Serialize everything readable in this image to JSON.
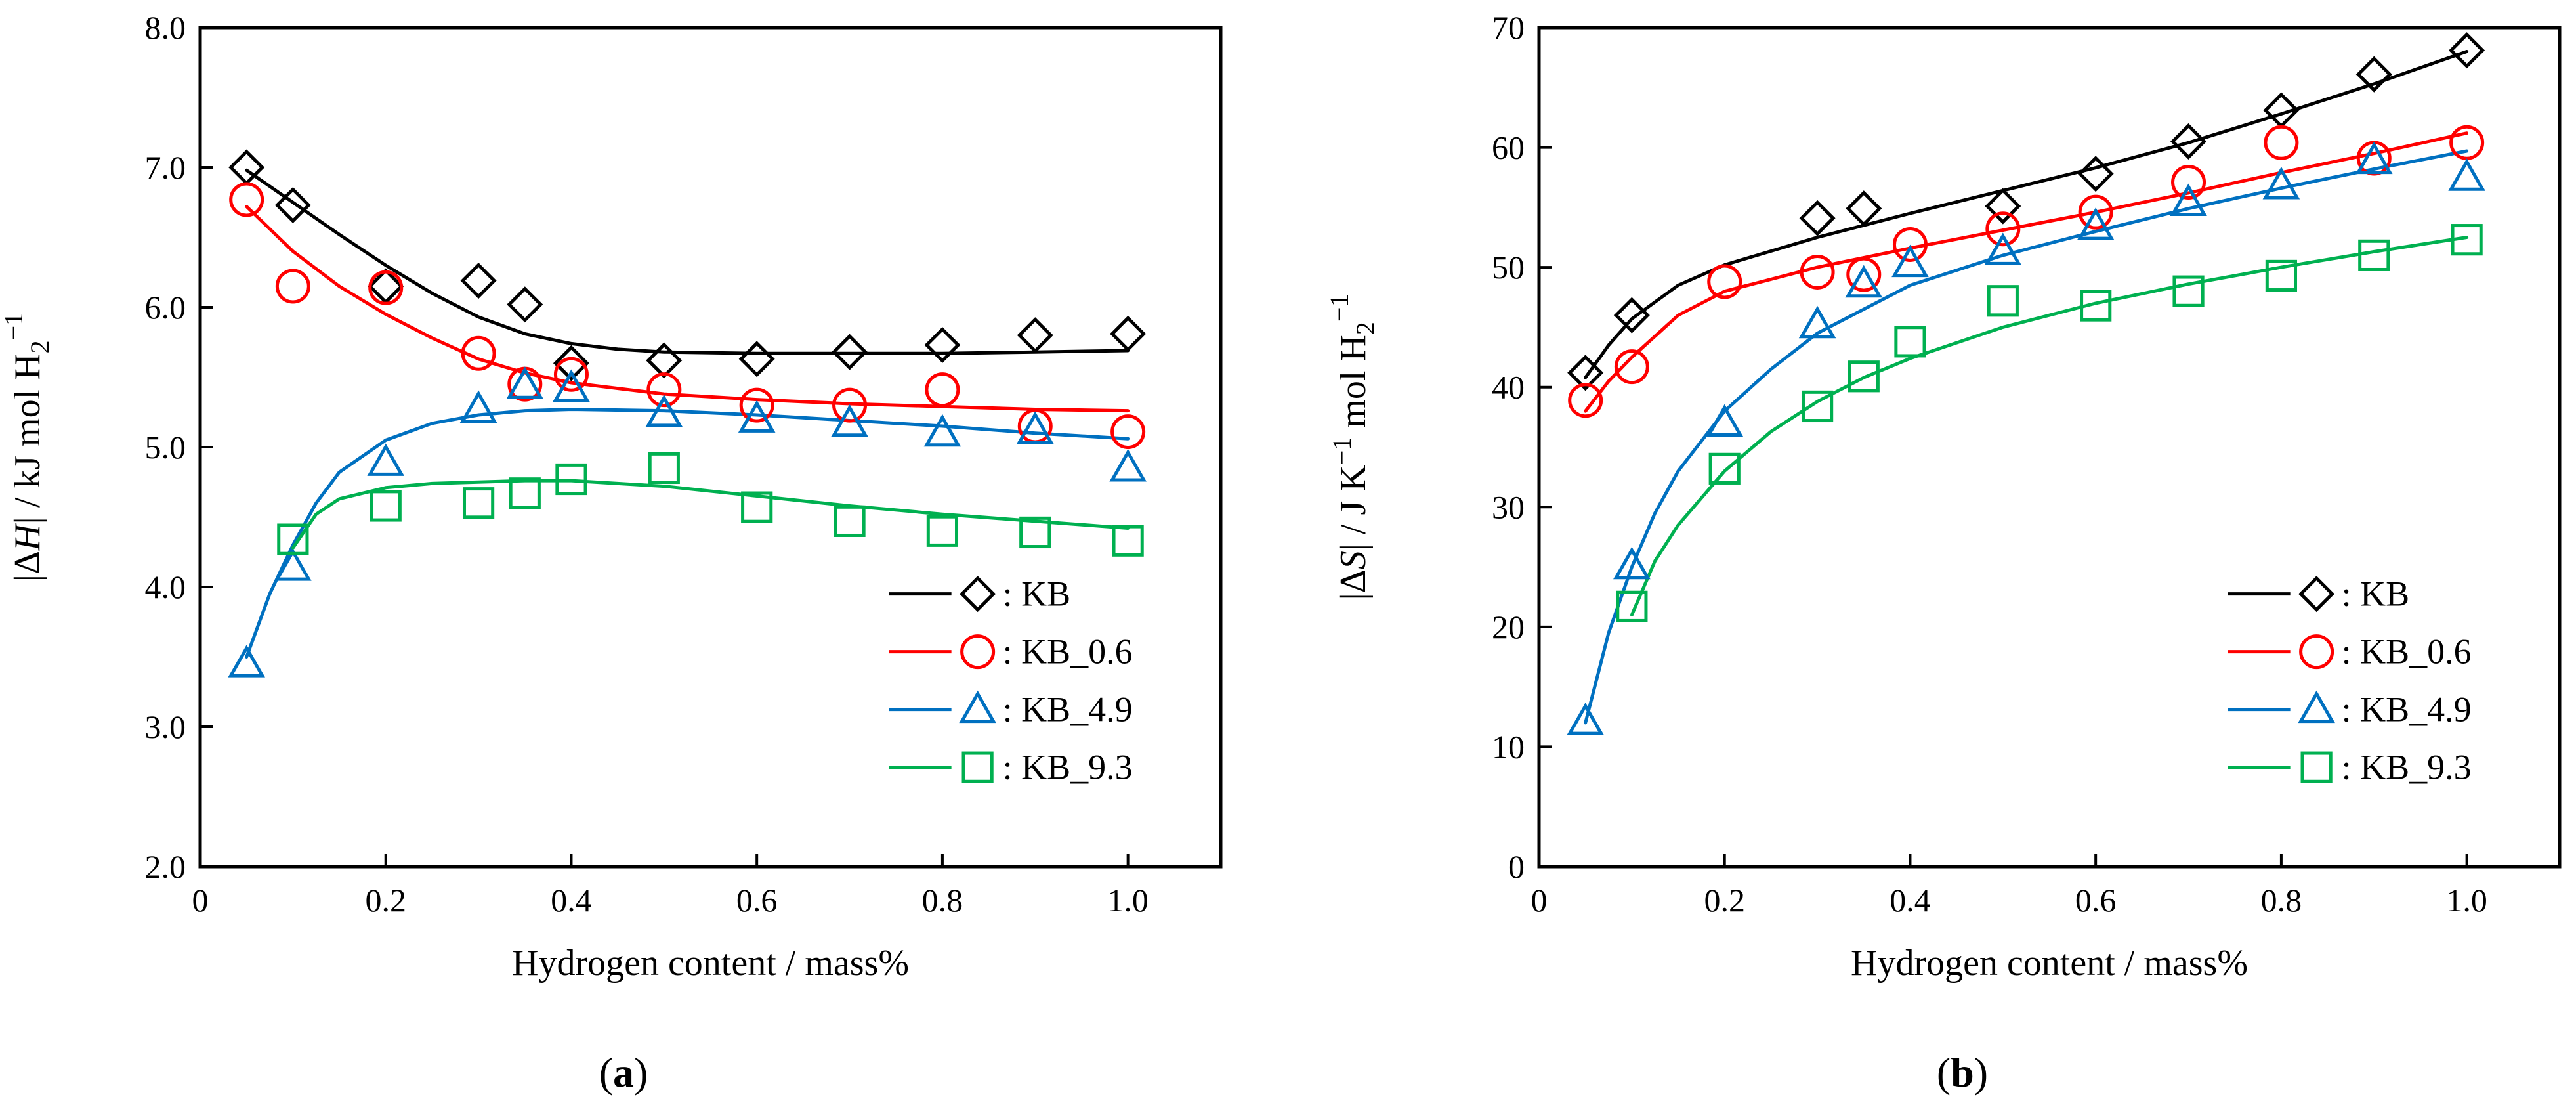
{
  "chart_data": [
    {
      "panel_label": "a",
      "type": "scatter",
      "xlabel": "Hydrogen content / mass%",
      "ylabel": {
        "pre": "|Δ",
        "italic": "H",
        "post": "| / kJ mol H",
        "sub": "2",
        "sup": "−1"
      },
      "xlim": [
        0,
        1.1
      ],
      "ylim": [
        2.0,
        8.0
      ],
      "xticks": [
        0,
        0.2,
        0.4,
        0.6,
        0.8,
        1.0
      ],
      "xtick_labels": [
        "0",
        "0.2",
        "0.4",
        "0.6",
        "0.8",
        "1.0"
      ],
      "yticks": [
        2,
        3,
        4,
        5,
        6,
        7,
        8
      ],
      "ytick_labels": [
        "2.0",
        "3.0",
        "4.0",
        "5.0",
        "6.0",
        "7.0",
        "8.0"
      ],
      "grid": false,
      "legend_placement": "bottom-right",
      "series": [
        {
          "name": ": KB",
          "color": "#000000",
          "marker": "diamond",
          "x": [
            0.05,
            0.1,
            0.2,
            0.3,
            0.35,
            0.4,
            0.5,
            0.6,
            0.7,
            0.8,
            0.9,
            1.0
          ],
          "y": [
            7.0,
            6.73,
            6.15,
            6.19,
            6.02,
            5.6,
            5.62,
            5.63,
            5.68,
            5.73,
            5.8,
            5.81
          ],
          "fit_x": [
            0.05,
            0.1,
            0.15,
            0.2,
            0.25,
            0.3,
            0.35,
            0.4,
            0.45,
            0.5,
            0.6,
            0.7,
            0.8,
            0.9,
            1.0
          ],
          "fit_y": [
            6.98,
            6.75,
            6.52,
            6.3,
            6.1,
            5.93,
            5.81,
            5.74,
            5.7,
            5.68,
            5.67,
            5.67,
            5.67,
            5.68,
            5.69
          ]
        },
        {
          "name": ": KB_0.6",
          "color": "#ff0000",
          "marker": "circle",
          "x": [
            0.05,
            0.1,
            0.2,
            0.3,
            0.35,
            0.4,
            0.5,
            0.6,
            0.7,
            0.8,
            0.9,
            1.0
          ],
          "y": [
            6.77,
            6.15,
            6.14,
            5.67,
            5.45,
            5.52,
            5.41,
            5.3,
            5.3,
            5.41,
            5.15,
            5.11
          ],
          "fit_x": [
            0.05,
            0.1,
            0.15,
            0.2,
            0.25,
            0.3,
            0.35,
            0.4,
            0.5,
            0.6,
            0.7,
            0.8,
            0.9,
            1.0
          ],
          "fit_y": [
            6.72,
            6.4,
            6.15,
            5.95,
            5.78,
            5.63,
            5.53,
            5.46,
            5.38,
            5.34,
            5.31,
            5.29,
            5.27,
            5.26
          ]
        },
        {
          "name": ": KB_4.9",
          "color": "#0070c0",
          "marker": "triangle",
          "x": [
            0.05,
            0.1,
            0.2,
            0.3,
            0.35,
            0.4,
            0.5,
            0.6,
            0.7,
            0.8,
            0.9,
            1.0
          ],
          "y": [
            3.45,
            4.14,
            4.89,
            5.27,
            5.44,
            5.42,
            5.24,
            5.2,
            5.17,
            5.1,
            5.12,
            4.85
          ],
          "fit_x": [
            0.05,
            0.075,
            0.1,
            0.125,
            0.15,
            0.2,
            0.25,
            0.3,
            0.35,
            0.4,
            0.5,
            0.6,
            0.7,
            0.8,
            0.9,
            1.0
          ],
          "fit_y": [
            3.5,
            3.95,
            4.3,
            4.6,
            4.82,
            5.05,
            5.17,
            5.23,
            5.26,
            5.27,
            5.26,
            5.23,
            5.19,
            5.15,
            5.1,
            5.06
          ]
        },
        {
          "name": ": KB_9.3",
          "color": "#00b050",
          "marker": "square",
          "x": [
            0.1,
            0.2,
            0.3,
            0.35,
            0.4,
            0.5,
            0.6,
            0.7,
            0.8,
            0.9,
            1.0
          ],
          "y": [
            4.34,
            4.58,
            4.6,
            4.67,
            4.77,
            4.85,
            4.57,
            4.47,
            4.4,
            4.39,
            4.33
          ],
          "fit_x": [
            0.1,
            0.125,
            0.15,
            0.2,
            0.25,
            0.3,
            0.35,
            0.4,
            0.5,
            0.6,
            0.7,
            0.8,
            0.9,
            1.0
          ],
          "fit_y": [
            4.28,
            4.52,
            4.63,
            4.71,
            4.74,
            4.75,
            4.76,
            4.76,
            4.72,
            4.65,
            4.58,
            4.52,
            4.47,
            4.42
          ]
        }
      ]
    },
    {
      "panel_label": "b",
      "type": "scatter",
      "xlabel": "Hydrogen content / mass%",
      "ylabel": {
        "pre": "|Δ",
        "italic": "S",
        "post": "| / J K",
        "sup1": "−1",
        "post2": " mol H",
        "sub": "2",
        "sup": "−1"
      },
      "xlim": [
        0,
        1.1
      ],
      "ylim": [
        0,
        70
      ],
      "xticks": [
        0,
        0.2,
        0.4,
        0.6,
        0.8,
        1.0
      ],
      "xtick_labels": [
        "0",
        "0.2",
        "0.4",
        "0.6",
        "0.8",
        "1.0"
      ],
      "yticks": [
        0,
        10,
        20,
        30,
        40,
        50,
        60,
        70
      ],
      "ytick_labels": [
        "0",
        "10",
        "20",
        "30",
        "40",
        "50",
        "60",
        "70"
      ],
      "grid": false,
      "legend_placement": "bottom-right",
      "series": [
        {
          "name": ": KB",
          "color": "#000000",
          "marker": "diamond",
          "x": [
            0.05,
            0.1,
            0.3,
            0.35,
            0.5,
            0.6,
            0.7,
            0.8,
            0.9,
            1.0
          ],
          "y": [
            41.2,
            46,
            54.1,
            54.9,
            55.1,
            57.8,
            60.5,
            63.1,
            66.1,
            68.1
          ],
          "fit_x": [
            0.05,
            0.075,
            0.1,
            0.15,
            0.2,
            0.3,
            0.4,
            0.5,
            0.6,
            0.7,
            0.8,
            0.9,
            1.0
          ],
          "fit_y": [
            40.8,
            43.5,
            45.7,
            48.5,
            50.2,
            52.5,
            54.5,
            56.4,
            58.3,
            60.4,
            62.8,
            65.3,
            68.0
          ]
        },
        {
          "name": ": KB_0.6",
          "color": "#ff0000",
          "marker": "circle",
          "x": [
            0.05,
            0.1,
            0.2,
            0.3,
            0.35,
            0.4,
            0.5,
            0.6,
            0.7,
            0.8,
            0.9,
            1.0
          ],
          "y": [
            38.9,
            41.7,
            48.8,
            49.6,
            49.4,
            51.9,
            53.2,
            54.6,
            57.1,
            60.4,
            59.1,
            60.4
          ],
          "fit_x": [
            0.05,
            0.075,
            0.1,
            0.15,
            0.2,
            0.3,
            0.4,
            0.5,
            0.6,
            0.7,
            0.8,
            0.9,
            1.0
          ],
          "fit_y": [
            38.0,
            40.5,
            42.5,
            46.0,
            48.0,
            50.0,
            51.6,
            53.1,
            54.6,
            56.2,
            57.9,
            59.5,
            61.2
          ]
        },
        {
          "name": ": KB_4.9",
          "color": "#0070c0",
          "marker": "triangle",
          "x": [
            0.05,
            0.1,
            0.2,
            0.3,
            0.35,
            0.4,
            0.5,
            0.6,
            0.7,
            0.8,
            0.9,
            1.0
          ],
          "y": [
            12.1,
            25.1,
            37,
            45.2,
            48.6,
            50.3,
            51.3,
            53.4,
            55.4,
            56.8,
            58.9,
            57.5
          ],
          "fit_x": [
            0.05,
            0.075,
            0.1,
            0.125,
            0.15,
            0.2,
            0.25,
            0.3,
            0.4,
            0.5,
            0.6,
            0.7,
            0.8,
            0.9,
            1.0
          ],
          "fit_y": [
            12.0,
            19.5,
            25.0,
            29.5,
            33.0,
            38.0,
            41.5,
            44.5,
            48.5,
            51.0,
            53.0,
            54.9,
            56.6,
            58.2,
            59.7
          ]
        },
        {
          "name": ": KB_9.3",
          "color": "#00b050",
          "marker": "square",
          "x": [
            0.1,
            0.2,
            0.3,
            0.35,
            0.4,
            0.5,
            0.6,
            0.7,
            0.8,
            0.9,
            1.0
          ],
          "y": [
            21.7,
            33.2,
            38.4,
            40.9,
            43.8,
            47.2,
            46.8,
            48,
            49.3,
            51,
            52.3
          ],
          "fit_x": [
            0.1,
            0.125,
            0.15,
            0.2,
            0.25,
            0.3,
            0.35,
            0.4,
            0.5,
            0.6,
            0.7,
            0.8,
            0.9,
            1.0
          ],
          "fit_y": [
            21.0,
            25.5,
            28.5,
            33.0,
            36.3,
            38.8,
            40.8,
            42.4,
            45.0,
            47.0,
            48.6,
            50.0,
            51.3,
            52.5
          ]
        }
      ]
    }
  ]
}
